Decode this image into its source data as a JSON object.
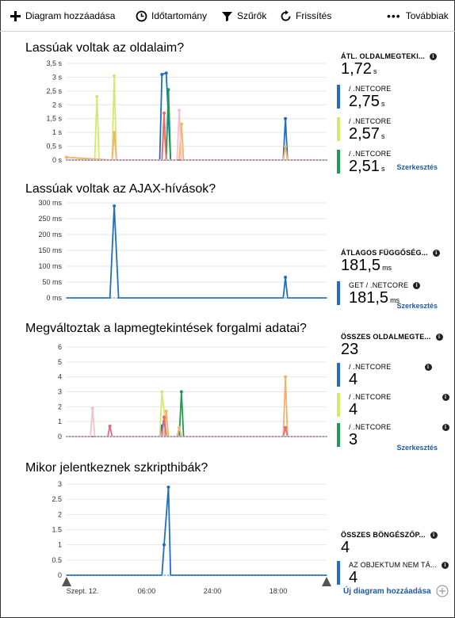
{
  "toolbar": {
    "add_chart": "Diagram hozzáadása",
    "time_range": "Időtartomány",
    "filters": "Szűrők",
    "refresh": "Frissítés",
    "more": "Továbbiak"
  },
  "sections": [
    {
      "title": "Lassúak voltak az oldalaim?",
      "main_metric": {
        "label": "ÁTL. OLDALMEGTEKI...",
        "value": "1,72",
        "unit": "s"
      },
      "sub_metrics": [
        {
          "label": "/ .NETCORE",
          "value": "2,75",
          "unit": "s",
          "color": "#1f6fc1"
        },
        {
          "label": "/ .NETCORE",
          "value": "2,57",
          "unit": "s",
          "color": "#d6e86a"
        },
        {
          "label": "/ .NETCORE",
          "value": "2,51",
          "unit": "s",
          "color": "#1e9b4e"
        }
      ],
      "edit": "Szerkesztés"
    },
    {
      "title": "Lassúak voltak az AJAX-hívások?",
      "main_metric": {
        "label": "ÁTLAGOS FÜGGŐSÉG...",
        "value": "181,5",
        "unit": "ms"
      },
      "sub_metrics": [
        {
          "label": "GET / .NETCORE",
          "value": "181,5",
          "unit": "ms",
          "color": "#1f6fc1"
        }
      ],
      "edit": "Szerkesztés"
    },
    {
      "title": "Megváltoztak a lapmegtekintések forgalmi adatai?",
      "main_metric": {
        "label": "ÖSSZES OLDALMEGTE...",
        "value": "23",
        "unit": ""
      },
      "sub_metrics": [
        {
          "label": "/ .NETCORE",
          "value": "4",
          "unit": "",
          "color": "#1f6fc1"
        },
        {
          "label": "/ .NETCORE",
          "value": "4",
          "unit": "",
          "color": "#d6e86a"
        },
        {
          "label": "/ .NETCORE",
          "value": "3",
          "unit": "",
          "color": "#1e9b4e"
        }
      ],
      "edit": "Szerkesztés"
    },
    {
      "title": "Mikor jelentkeznek szkripthibák?",
      "main_metric": {
        "label": "ÖSSZES BÖNGÉSZŐP...",
        "value": "4",
        "unit": ""
      },
      "sub_metrics": [
        {
          "label": "AZ OBJEKTUM NEM TÁ...",
          "value": "4",
          "unit": "",
          "color": "#1f6fc1"
        }
      ],
      "add_chart": "Új diagram hozzáadása"
    }
  ],
  "x_axis": {
    "ticks": [
      "Szept. 12.",
      "06:00",
      "24:00",
      "18:00"
    ]
  },
  "chart_data": [
    {
      "type": "line",
      "title": "Lassúak voltak az oldalaim?",
      "yticks": [
        "0 s",
        "0,5 s",
        "1 s",
        "1,5 s",
        "2 s",
        "2,5 s",
        "3 s",
        "3,5 s"
      ],
      "ylim": [
        0,
        3.5
      ],
      "series": [
        {
          "color": "#1f6fc1",
          "points": [
            [
              0,
              0
            ],
            [
              43,
              0
            ],
            [
              44,
              3.1
            ],
            [
              46,
              3.15
            ],
            [
              48,
              0
            ],
            [
              100,
              0
            ],
            [
              101,
              1.5
            ],
            [
              102,
              0
            ],
            [
              120,
              0
            ]
          ]
        },
        {
          "color": "#d6e86a",
          "points": [
            [
              0,
              0.1
            ],
            [
              13,
              0
            ],
            [
              14,
              2.3
            ],
            [
              15,
              0
            ],
            [
              21,
              0
            ],
            [
              22,
              3.05
            ],
            [
              23,
              0
            ],
            [
              120,
              0
            ]
          ]
        },
        {
          "color": "#1e9b4e",
          "points": [
            [
              0,
              0
            ],
            [
              46,
              0
            ],
            [
              47,
              2.55
            ],
            [
              48,
              0
            ],
            [
              120,
              0
            ]
          ]
        },
        {
          "color": "#f5b06b",
          "points": [
            [
              0,
              0.1
            ],
            [
              21,
              0
            ],
            [
              22,
              1
            ],
            [
              23,
              0
            ],
            [
              44,
              0
            ],
            [
              45,
              1.2
            ],
            [
              46,
              0
            ],
            [
              52,
              0
            ],
            [
              53,
              1.3
            ],
            [
              54,
              0
            ],
            [
              100,
              0
            ],
            [
              101,
              0.5
            ],
            [
              102,
              0
            ],
            [
              120,
              0
            ]
          ]
        },
        {
          "color": "#e8697b",
          "points": [
            [
              0,
              0
            ],
            [
              44,
              0
            ],
            [
              45,
              1.7
            ],
            [
              46,
              0
            ],
            [
              120,
              0
            ]
          ]
        },
        {
          "color": "#f2c4c8",
          "points": [
            [
              0,
              0
            ],
            [
              51,
              0
            ],
            [
              52,
              1.8
            ],
            [
              53,
              0
            ],
            [
              120,
              0
            ]
          ]
        }
      ]
    },
    {
      "type": "line",
      "title": "Lassúak voltak az AJAX-hívások?",
      "yticks": [
        "0 ms",
        "50 ms",
        "100 ms",
        "150 ms",
        "200 ms",
        "250 ms",
        "300 ms"
      ],
      "ylim": [
        0,
        300
      ],
      "series": [
        {
          "color": "#1f6fc1",
          "points": [
            [
              0,
              0
            ],
            [
              20,
              0
            ],
            [
              22,
              290
            ],
            [
              24,
              0
            ],
            [
              100,
              0
            ],
            [
              101,
              65
            ],
            [
              102,
              0
            ],
            [
              120,
              0
            ]
          ]
        }
      ]
    },
    {
      "type": "line",
      "title": "Megváltoztak a lapmegtekintések forgalmi adatai?",
      "yticks": [
        "0",
        "1",
        "2",
        "3",
        "4",
        "5",
        "6"
      ],
      "ylim": [
        0,
        6
      ],
      "series": [
        {
          "color": "#1f6fc1",
          "points": [
            [
              0,
              0
            ],
            [
              43,
              0
            ],
            [
              44,
              0.7
            ],
            [
              45,
              1
            ],
            [
              46,
              0
            ],
            [
              120,
              0
            ]
          ]
        },
        {
          "color": "#d6e86a",
          "points": [
            [
              0,
              0
            ],
            [
              43,
              0
            ],
            [
              44,
              3
            ],
            [
              46,
              0.3
            ],
            [
              47,
              0
            ],
            [
              120,
              0
            ]
          ]
        },
        {
          "color": "#1e9b4e",
          "points": [
            [
              0,
              0
            ],
            [
              52,
              0
            ],
            [
              53,
              3
            ],
            [
              54,
              0
            ],
            [
              120,
              0
            ]
          ]
        },
        {
          "color": "#f5b06b",
          "points": [
            [
              0,
              0
            ],
            [
              45,
              0
            ],
            [
              46,
              1.7
            ],
            [
              47,
              0
            ],
            [
              51,
              0
            ],
            [
              52,
              0.6
            ],
            [
              53,
              0
            ],
            [
              100,
              0
            ],
            [
              101,
              4
            ],
            [
              102,
              0
            ],
            [
              120,
              0
            ]
          ]
        },
        {
          "color": "#e8697b",
          "points": [
            [
              0,
              0
            ],
            [
              19,
              0
            ],
            [
              20,
              0.7
            ],
            [
              21,
              0
            ],
            [
              44,
              0
            ],
            [
              45,
              1.3
            ],
            [
              46,
              0
            ],
            [
              100,
              0
            ],
            [
              101,
              0.6
            ],
            [
              102,
              0
            ],
            [
              120,
              0
            ]
          ]
        },
        {
          "color": "#f2c4c8",
          "points": [
            [
              0,
              0
            ],
            [
              11,
              0
            ],
            [
              12,
              1.9
            ],
            [
              13,
              0
            ],
            [
              120,
              0
            ]
          ]
        }
      ]
    },
    {
      "type": "line",
      "title": "Mikor jelentkeznek szkripthibák?",
      "yticks": [
        "0",
        "0.5",
        "1",
        "1.5",
        "2",
        "2.5",
        "3"
      ],
      "ylim": [
        0,
        3
      ],
      "series": [
        {
          "color": "#1f6fc1",
          "points": [
            [
              0,
              0
            ],
            [
              44,
              0
            ],
            [
              45,
              1
            ],
            [
              47,
              2.9
            ],
            [
              48,
              0
            ],
            [
              120,
              0
            ]
          ]
        }
      ]
    }
  ]
}
